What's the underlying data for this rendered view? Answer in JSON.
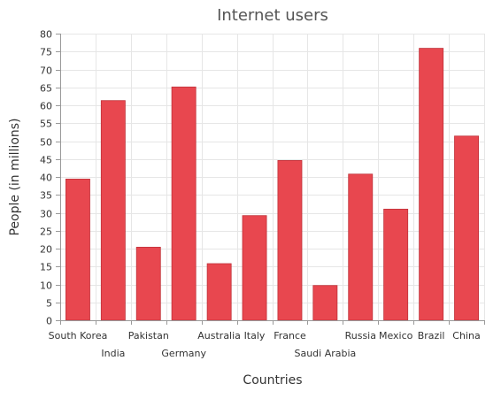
{
  "chart_data": {
    "type": "bar",
    "title": "Internet users",
    "xlabel": "Countries",
    "ylabel": "People (in millions)",
    "categories": [
      "South Korea",
      "India",
      "Pakistan",
      "Germany",
      "Australia",
      "Italy",
      "France",
      "Saudi Arabia",
      "Russia",
      "Mexico",
      "Brazil",
      "China"
    ],
    "values": [
      39.4,
      61.3,
      20.4,
      65.1,
      15.8,
      29.2,
      44.6,
      9.7,
      40.8,
      31.0,
      75.9,
      51.4
    ],
    "ylim": [
      0,
      80
    ],
    "ytick_step": 5,
    "grid": true,
    "legend": "none",
    "bar_color": "#e8474f",
    "bar_stroke": "#c0323a"
  }
}
